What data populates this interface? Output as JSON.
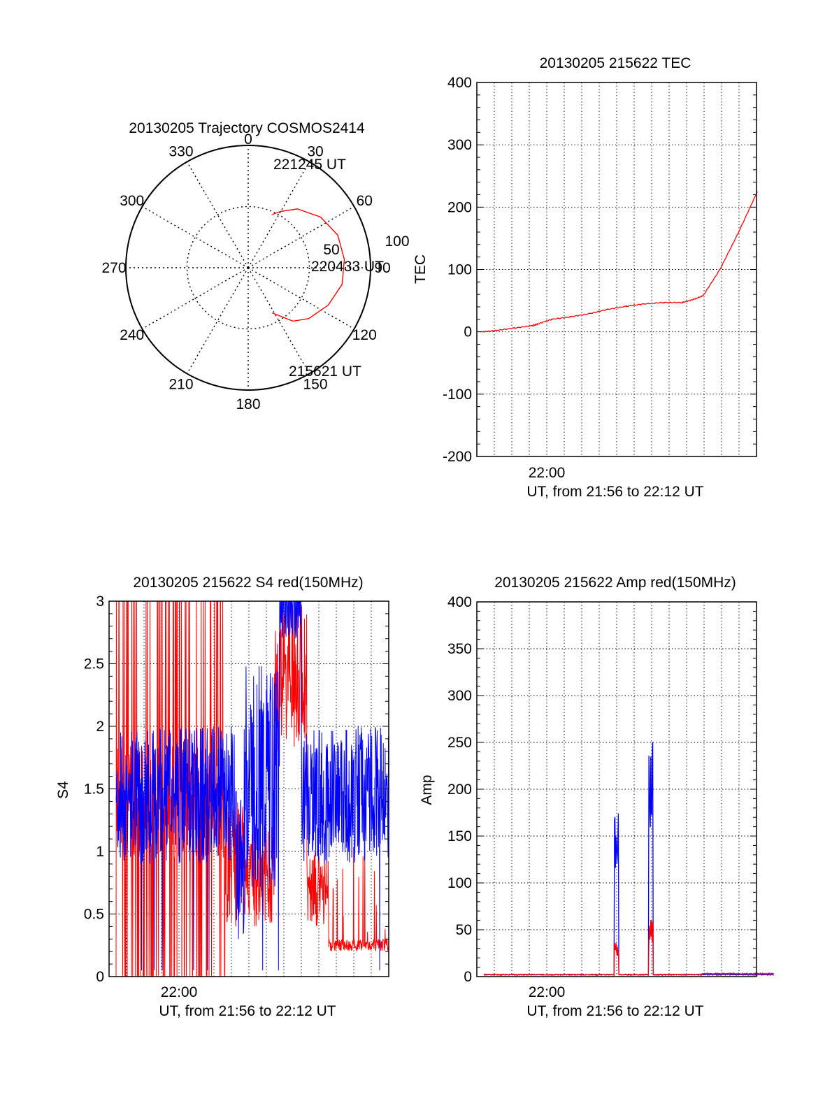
{
  "colors": {
    "red": "#ff0000",
    "blue": "#0000ff",
    "axis": "#000000",
    "grid": "#000000"
  },
  "chart_data": [
    {
      "id": "trajectory",
      "type": "polar",
      "title": "20130205 Trajectory COSMOS2414",
      "azimuth_labels": [
        "0",
        "30",
        "60",
        "90",
        "120",
        "150",
        "180",
        "210",
        "240",
        "270",
        "300",
        "330"
      ],
      "radial_labels": [
        "50",
        "100"
      ],
      "radial_range": [
        0,
        100
      ],
      "grid": true,
      "track": {
        "color": "red",
        "points_az_el": [
          [
            24,
            65
          ],
          [
            30,
            62
          ],
          [
            40,
            57
          ],
          [
            55,
            52
          ],
          [
            70,
            49
          ],
          [
            85,
            48.5
          ],
          [
            100,
            49
          ],
          [
            115,
            52
          ],
          [
            130,
            56
          ],
          [
            140,
            60
          ],
          [
            152,
            68
          ]
        ]
      },
      "annotations": [
        "221245 UT",
        "220433 UT",
        "215621 UT"
      ]
    },
    {
      "id": "tec",
      "type": "line",
      "title": "20130205 215622 TEC",
      "ylabel": "TEC",
      "xlabel": "UT, from 21:56 to 22:12 UT",
      "x_tick_labels": [
        "22:00"
      ],
      "y_tick_labels": [
        "400",
        "300",
        "200",
        "100",
        "0",
        "-100",
        "-200"
      ],
      "ylim": [
        -200,
        400
      ],
      "grid": true,
      "series": [
        {
          "color": "red",
          "x_minutes": [
            0.3,
            1,
            2,
            3,
            3.3,
            4,
            5,
            6,
            7,
            8,
            9,
            10,
            11,
            11.6,
            12.1,
            13,
            14,
            15
          ],
          "values": [
            0,
            2,
            6,
            10,
            13,
            20,
            24,
            29,
            36,
            41,
            45,
            47,
            47,
            52,
            58,
            100,
            160,
            225
          ]
        }
      ]
    },
    {
      "id": "s4",
      "type": "line",
      "title": "20130205 215622 S4 red(150MHz)",
      "ylabel": "S4",
      "xlabel": "UT, from 21:56 to 22:12 UT",
      "x_tick_labels": [
        "22:00"
      ],
      "y_tick_labels": [
        "3",
        "2.5",
        "2",
        "1.5",
        "1",
        "0.5",
        "0"
      ],
      "ylim": [
        0,
        3
      ],
      "grid": true,
      "series": [
        {
          "color": "red",
          "name": ""
        },
        {
          "color": "blue",
          "name": ""
        }
      ]
    },
    {
      "id": "amp",
      "type": "line",
      "title": "20130205 215622 Amp red(150MHz)",
      "ylabel": "Amp",
      "xlabel": "UT, from 21:56 to 22:12 UT",
      "x_tick_labels": [
        "22:00"
      ],
      "y_tick_labels": [
        "400",
        "350",
        "300",
        "250",
        "200",
        "150",
        "100",
        "50",
        "0"
      ],
      "ylim": [
        0,
        400
      ],
      "grid": true,
      "series": [
        {
          "color": "blue",
          "peaks": [
            {
              "x_minutes": 7.3,
              "value": 200
            },
            {
              "x_minutes": 9.2,
              "value": 257
            }
          ]
        },
        {
          "color": "red",
          "peaks": [
            {
              "x_minutes": 7.3,
              "value": 40
            },
            {
              "x_minutes": 9.2,
              "value": 65
            }
          ]
        }
      ]
    }
  ]
}
